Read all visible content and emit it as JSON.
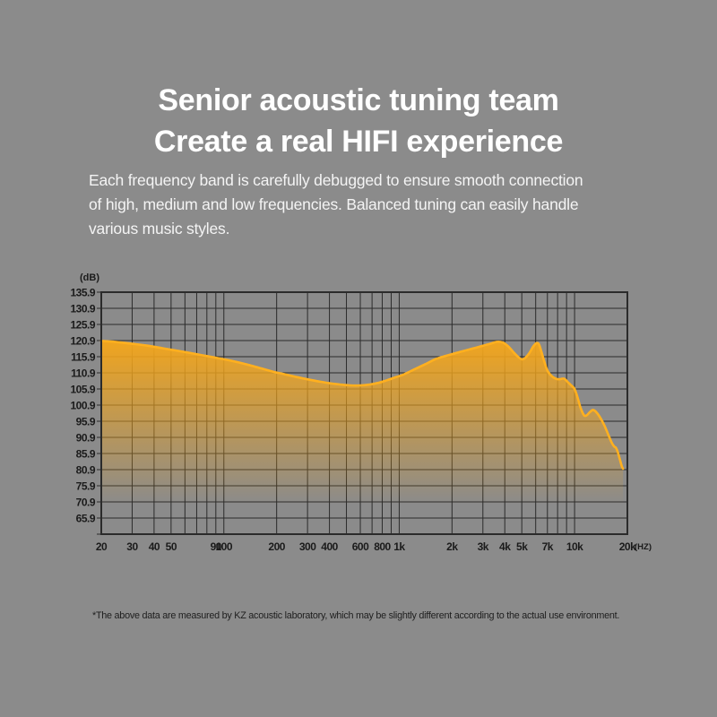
{
  "page": {
    "background": "#8b8b8b",
    "title_lines": [
      "Senior acoustic tuning team",
      "Create a real HIFI experience"
    ],
    "description_lines": [
      "Each frequency band is carefully debugged to ensure smooth connection",
      "of high, medium and low frequencies. Balanced tuning can easily handle",
      "various music styles."
    ],
    "footnote": "*The above data are measured by KZ acoustic laboratory, which may be slightly different according to the actual use environment."
  },
  "chart_data": {
    "type": "area",
    "title": "",
    "ylabel": "(dB)",
    "xlabel": "(HZ)",
    "x_scale": "log",
    "x_range_hz": [
      20,
      20000
    ],
    "ylim": [
      60.9,
      135.9
    ],
    "grid": true,
    "legend": false,
    "y_ticks": [
      "135.9",
      "130.9",
      "125.9",
      "120.9",
      "115.9",
      "110.9",
      "105.9",
      "100.9",
      "95.9",
      "90.9",
      "85.9",
      "80.9",
      "75.9",
      "70.9",
      "65.9"
    ],
    "y_tick_step_db": 5,
    "x_ticks": [
      {
        "hz": 20,
        "label": "20"
      },
      {
        "hz": 30,
        "label": "30"
      },
      {
        "hz": 40,
        "label": "40"
      },
      {
        "hz": 50,
        "label": "50"
      },
      {
        "hz": 90,
        "label": "90"
      },
      {
        "hz": 100,
        "label": "100"
      },
      {
        "hz": 200,
        "label": "200"
      },
      {
        "hz": 300,
        "label": "300"
      },
      {
        "hz": 400,
        "label": "400"
      },
      {
        "hz": 600,
        "label": "600"
      },
      {
        "hz": 800,
        "label": "800"
      },
      {
        "hz": 1000,
        "label": "1k"
      },
      {
        "hz": 2000,
        "label": "2k"
      },
      {
        "hz": 3000,
        "label": "3k"
      },
      {
        "hz": 4000,
        "label": "4k"
      },
      {
        "hz": 5000,
        "label": "5k"
      },
      {
        "hz": 7000,
        "label": "7k"
      },
      {
        "hz": 10000,
        "label": "10k"
      },
      {
        "hz": 20000,
        "label": "20k"
      }
    ],
    "grid_freqs_hz": [
      20,
      30,
      40,
      50,
      60,
      70,
      80,
      90,
      100,
      200,
      300,
      400,
      500,
      600,
      700,
      800,
      900,
      1000,
      2000,
      3000,
      4000,
      5000,
      6000,
      7000,
      8000,
      9000,
      10000,
      20000
    ],
    "series": [
      {
        "name": "frequency-response-db",
        "points": [
          [
            20,
            120.8
          ],
          [
            24,
            120.5
          ],
          [
            30,
            119.9
          ],
          [
            37,
            119.3
          ],
          [
            45,
            118.5
          ],
          [
            55,
            117.7
          ],
          [
            65,
            117.0
          ],
          [
            78,
            116.2
          ],
          [
            90,
            115.6
          ],
          [
            105,
            114.9
          ],
          [
            120,
            114.2
          ],
          [
            140,
            113.3
          ],
          [
            165,
            112.2
          ],
          [
            190,
            111.3
          ],
          [
            220,
            110.5
          ],
          [
            260,
            109.6
          ],
          [
            300,
            108.9
          ],
          [
            350,
            108.2
          ],
          [
            400,
            107.7
          ],
          [
            460,
            107.3
          ],
          [
            530,
            107.0
          ],
          [
            600,
            107.0
          ],
          [
            680,
            107.3
          ],
          [
            760,
            107.8
          ],
          [
            850,
            108.6
          ],
          [
            950,
            109.5
          ],
          [
            1050,
            110.3
          ],
          [
            1200,
            111.8
          ],
          [
            1400,
            113.5
          ],
          [
            1600,
            115.1
          ],
          [
            1800,
            116.0
          ],
          [
            2000,
            116.7
          ],
          [
            2300,
            117.6
          ],
          [
            2700,
            118.6
          ],
          [
            3000,
            119.3
          ],
          [
            3300,
            119.9
          ],
          [
            3600,
            120.5
          ],
          [
            3900,
            120.3
          ],
          [
            4200,
            119.0
          ],
          [
            4500,
            117.2
          ],
          [
            4800,
            115.7
          ],
          [
            5000,
            115.1
          ],
          [
            5200,
            115.4
          ],
          [
            5500,
            116.9
          ],
          [
            5800,
            119.0
          ],
          [
            6050,
            120.1
          ],
          [
            6250,
            119.8
          ],
          [
            6450,
            117.7
          ],
          [
            6700,
            114.6
          ],
          [
            7000,
            111.6
          ],
          [
            7400,
            109.9
          ],
          [
            7800,
            109.1
          ],
          [
            8200,
            108.9
          ],
          [
            8700,
            109.1
          ],
          [
            9200,
            107.9
          ],
          [
            9700,
            106.7
          ],
          [
            10000,
            105.9
          ],
          [
            10400,
            103.3
          ],
          [
            10800,
            100.2
          ],
          [
            11300,
            97.8
          ],
          [
            11700,
            97.7
          ],
          [
            12200,
            98.7
          ],
          [
            12700,
            99.4
          ],
          [
            13200,
            98.9
          ],
          [
            13900,
            97.3
          ],
          [
            14700,
            94.9
          ],
          [
            15500,
            92.0
          ],
          [
            16200,
            89.5
          ],
          [
            16800,
            88.1
          ],
          [
            17200,
            87.7
          ],
          [
            17600,
            86.5
          ],
          [
            18100,
            84.2
          ],
          [
            18600,
            81.9
          ],
          [
            18900,
            81.2
          ]
        ]
      }
    ],
    "colors": {
      "curve": "#ffb01f",
      "fill": "#f2a51c",
      "grid": "#2b2b2b",
      "tick_label": "#1b1b1b"
    }
  }
}
